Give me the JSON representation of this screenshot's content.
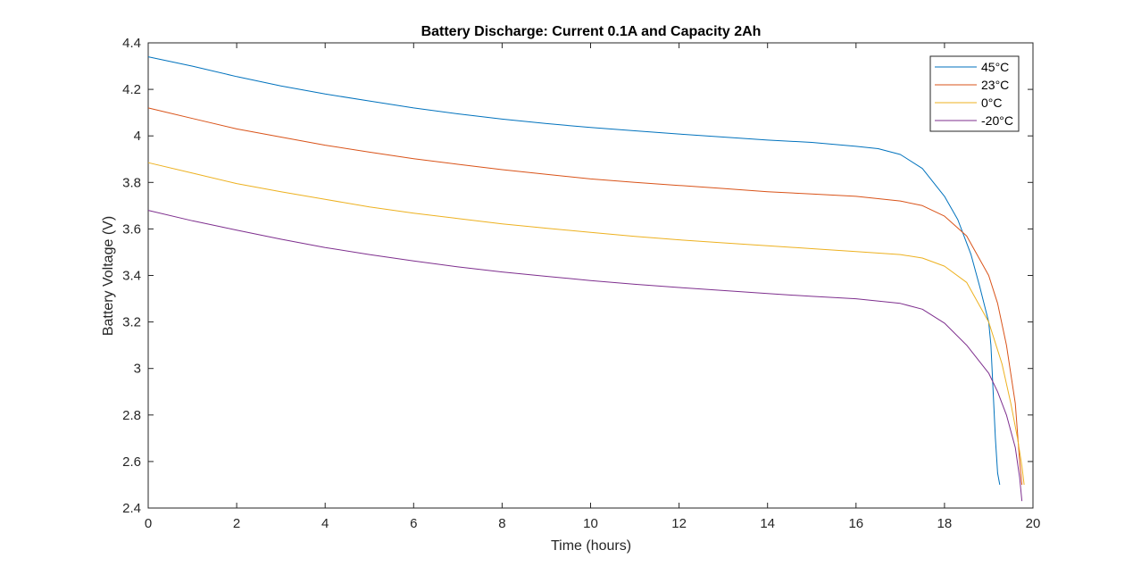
{
  "chart_data": {
    "type": "line",
    "title": "Battery Discharge: Current 0.1A and Capacity 2Ah",
    "xlabel": "Time (hours)",
    "ylabel": "Battery Voltage (V)",
    "xlim": [
      0,
      20
    ],
    "ylim": [
      2.4,
      4.4
    ],
    "xticks": [
      0,
      2,
      4,
      6,
      8,
      10,
      12,
      14,
      16,
      18,
      20
    ],
    "yticks": [
      2.4,
      2.6,
      2.8,
      3,
      3.2,
      3.4,
      3.6,
      3.8,
      4,
      4.2,
      4.4
    ],
    "xtick_labels": [
      "0",
      "2",
      "4",
      "6",
      "8",
      "10",
      "12",
      "14",
      "16",
      "18",
      "20"
    ],
    "ytick_labels": [
      "2.4",
      "2.6",
      "2.8",
      "3",
      "3.2",
      "3.4",
      "3.6",
      "3.8",
      "4",
      "4.2",
      "4.4"
    ],
    "grid": false,
    "legend_position": "top-right",
    "series": [
      {
        "name": "45°C",
        "color": "#0072BD",
        "x": [
          0,
          1,
          2,
          3,
          4,
          5,
          6,
          7,
          8,
          9,
          10,
          11,
          12,
          13,
          14,
          15,
          16,
          16.5,
          17,
          17.5,
          18,
          18.3,
          18.6,
          18.8,
          19.0,
          19.05,
          19.1,
          19.15,
          19.2,
          19.25
        ],
        "y": [
          4.34,
          4.3,
          4.255,
          4.215,
          4.18,
          4.15,
          4.12,
          4.095,
          4.072,
          4.053,
          4.036,
          4.022,
          4.008,
          3.995,
          3.982,
          3.972,
          3.955,
          3.945,
          3.92,
          3.86,
          3.74,
          3.64,
          3.49,
          3.35,
          3.2,
          3.1,
          2.9,
          2.7,
          2.55,
          2.5
        ]
      },
      {
        "name": "23°C",
        "color": "#D95319",
        "x": [
          0,
          1,
          2,
          3,
          4,
          5,
          6,
          7,
          8,
          9,
          10,
          11,
          12,
          13,
          14,
          15,
          16,
          17,
          17.5,
          18,
          18.5,
          19,
          19.2,
          19.4,
          19.6,
          19.7,
          19.75
        ],
        "y": [
          4.12,
          4.075,
          4.03,
          3.995,
          3.96,
          3.93,
          3.902,
          3.878,
          3.855,
          3.835,
          3.815,
          3.8,
          3.787,
          3.774,
          3.76,
          3.75,
          3.74,
          3.72,
          3.7,
          3.655,
          3.57,
          3.4,
          3.28,
          3.1,
          2.85,
          2.6,
          2.5
        ]
      },
      {
        "name": "0°C",
        "color": "#EDB120",
        "x": [
          0,
          1,
          2,
          3,
          4,
          5,
          6,
          7,
          8,
          9,
          10,
          11,
          12,
          13,
          14,
          15,
          16,
          17,
          17.5,
          18,
          18.5,
          19,
          19.3,
          19.5,
          19.65,
          19.75,
          19.8
        ],
        "y": [
          3.885,
          3.84,
          3.795,
          3.76,
          3.727,
          3.695,
          3.668,
          3.645,
          3.622,
          3.603,
          3.585,
          3.568,
          3.553,
          3.54,
          3.528,
          3.515,
          3.503,
          3.49,
          3.475,
          3.44,
          3.37,
          3.2,
          3.02,
          2.85,
          2.7,
          2.58,
          2.5
        ]
      },
      {
        "name": "-20°C",
        "color": "#7E2F8E",
        "x": [
          0,
          1,
          2,
          3,
          4,
          5,
          6,
          7,
          8,
          9,
          10,
          11,
          12,
          13,
          14,
          15,
          16,
          17,
          17.5,
          18,
          18.5,
          19,
          19.2,
          19.4,
          19.6,
          19.7,
          19.75
        ],
        "y": [
          3.68,
          3.635,
          3.595,
          3.556,
          3.52,
          3.49,
          3.462,
          3.437,
          3.415,
          3.396,
          3.378,
          3.362,
          3.348,
          3.335,
          3.322,
          3.31,
          3.3,
          3.28,
          3.255,
          3.195,
          3.1,
          2.98,
          2.9,
          2.8,
          2.66,
          2.53,
          2.43
        ]
      }
    ]
  }
}
